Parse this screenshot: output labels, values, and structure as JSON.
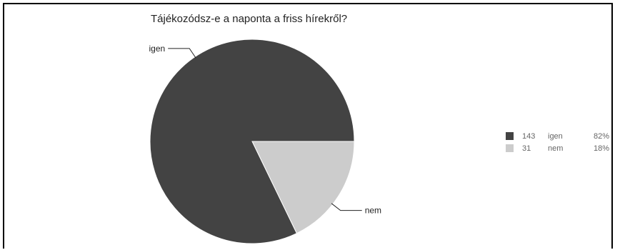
{
  "chart_data": {
    "type": "pie",
    "title": "Tájékozódsz-e a naponta a friss hírekről?",
    "slices": [
      {
        "label": "igen",
        "count": 143,
        "percent": "82%",
        "value": 143,
        "color": "#434343"
      },
      {
        "label": "nem",
        "count": 31,
        "percent": "18%",
        "value": 31,
        "color": "#cccccc"
      }
    ],
    "legend_position": "right"
  }
}
